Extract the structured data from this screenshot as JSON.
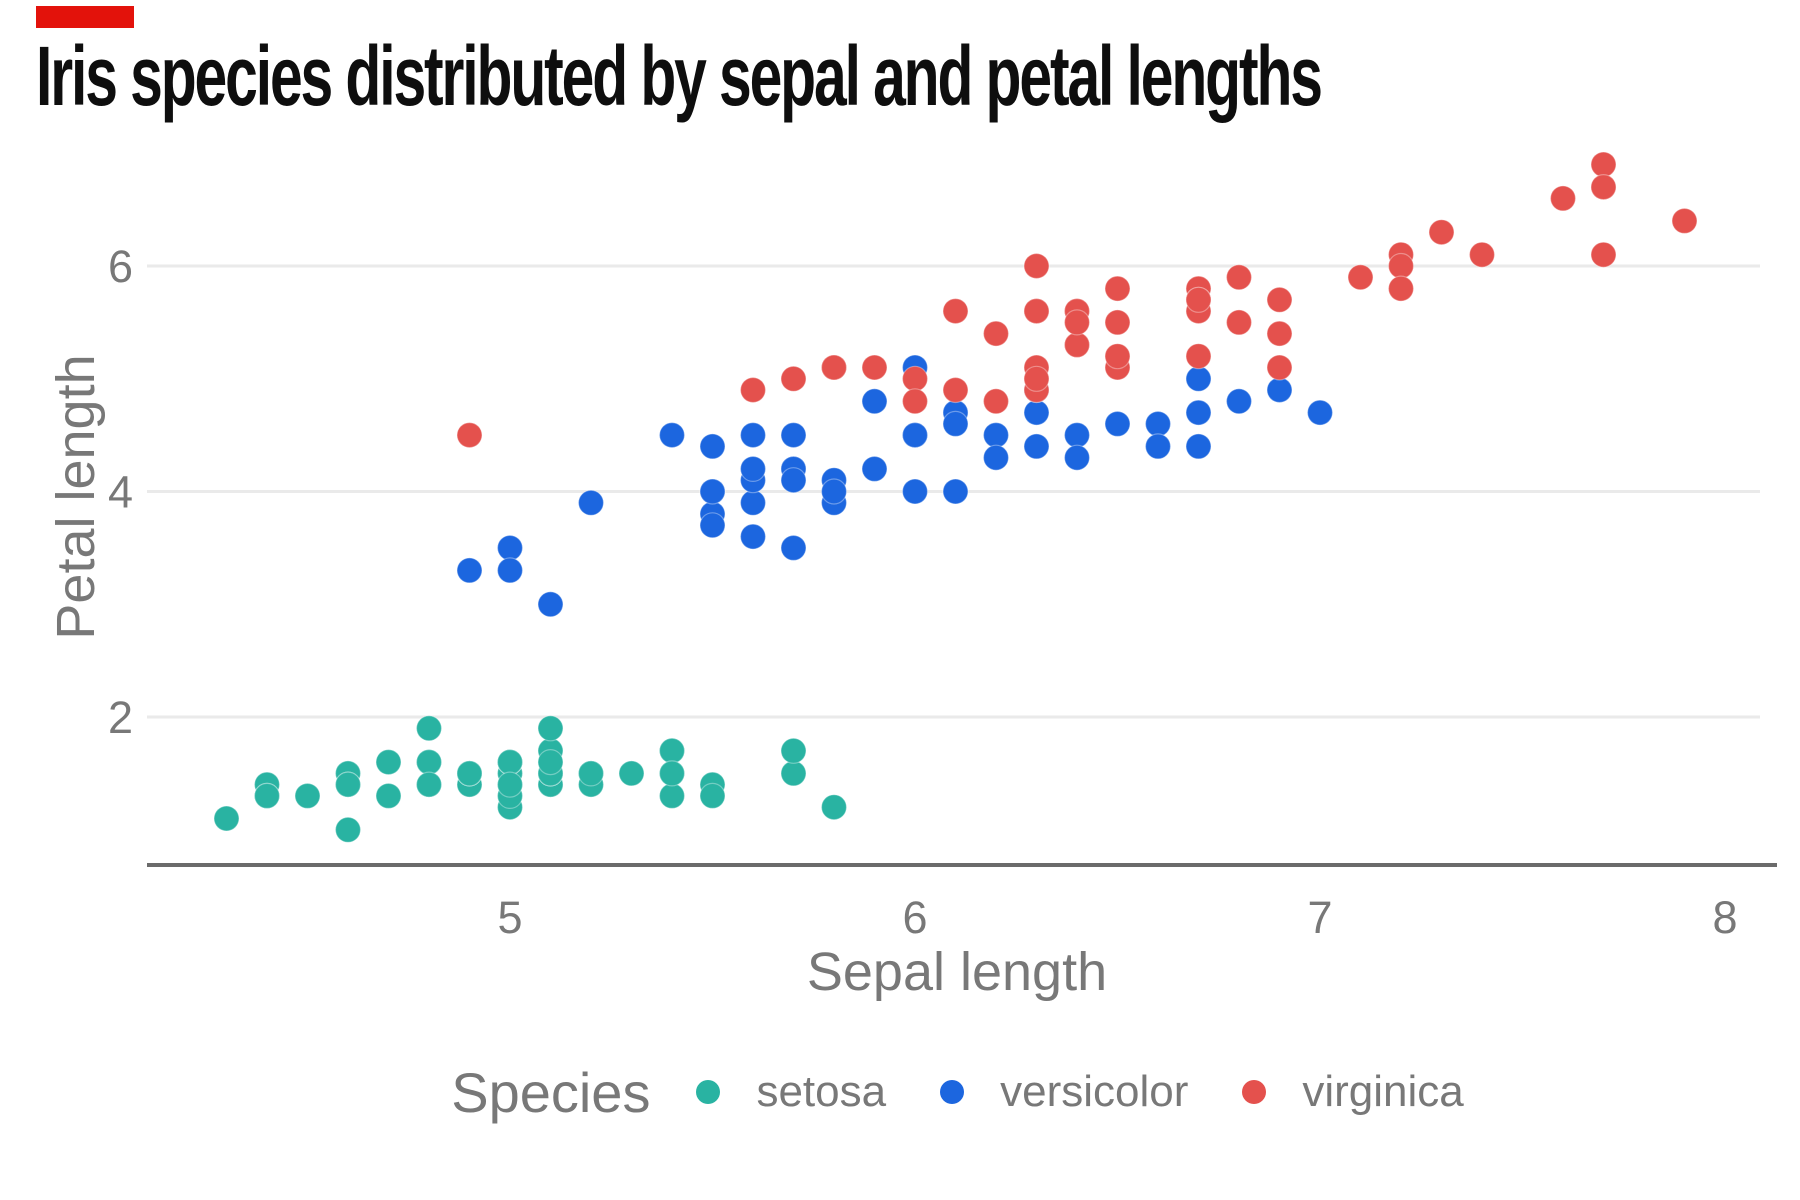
{
  "accent_bar": {
    "color": "#E3120B"
  },
  "legend": {
    "title": "Species",
    "items": [
      {
        "label": "setosa",
        "color": "#29B3A2"
      },
      {
        "label": "versicolor",
        "color": "#1C66DF"
      },
      {
        "label": "virginica",
        "color": "#E4514D"
      }
    ]
  },
  "style": {
    "grid_color": "#EAEAEA",
    "axis_line_color": "#6B6B6B",
    "tick_label_color": "#787878",
    "axis_title_color": "#787878"
  },
  "chart_data": {
    "type": "scatter",
    "title": "Iris species distributed by sepal and petal lengths",
    "xlabel": "Sepal length",
    "ylabel": "Petal length",
    "x_ticks": [
      5,
      6,
      7,
      8
    ],
    "y_ticks": [
      2,
      4,
      6
    ],
    "xlim": [
      4.1,
      8.1
    ],
    "ylim": [
      0.7,
      7.1
    ],
    "grid": "horizontal-only",
    "legend_position": "bottom",
    "series": [
      {
        "name": "setosa",
        "color": "#29B3A2",
        "points": [
          [
            5.1,
            1.4
          ],
          [
            4.9,
            1.4
          ],
          [
            4.7,
            1.3
          ],
          [
            4.6,
            1.5
          ],
          [
            5.0,
            1.4
          ],
          [
            5.4,
            1.7
          ],
          [
            4.6,
            1.4
          ],
          [
            5.0,
            1.5
          ],
          [
            4.4,
            1.4
          ],
          [
            4.9,
            1.5
          ],
          [
            5.4,
            1.5
          ],
          [
            4.8,
            1.6
          ],
          [
            4.8,
            1.4
          ],
          [
            4.3,
            1.1
          ],
          [
            5.8,
            1.2
          ],
          [
            5.7,
            1.5
          ],
          [
            5.4,
            1.3
          ],
          [
            5.1,
            1.4
          ],
          [
            5.7,
            1.7
          ],
          [
            5.1,
            1.5
          ],
          [
            5.4,
            1.7
          ],
          [
            5.1,
            1.5
          ],
          [
            4.6,
            1.0
          ],
          [
            5.1,
            1.7
          ],
          [
            4.8,
            1.9
          ],
          [
            5.0,
            1.6
          ],
          [
            5.0,
            1.6
          ],
          [
            5.2,
            1.5
          ],
          [
            5.2,
            1.4
          ],
          [
            4.7,
            1.6
          ],
          [
            4.8,
            1.6
          ],
          [
            5.4,
            1.5
          ],
          [
            5.2,
            1.5
          ],
          [
            5.5,
            1.4
          ],
          [
            4.9,
            1.5
          ],
          [
            5.0,
            1.2
          ],
          [
            5.5,
            1.3
          ],
          [
            4.9,
            1.5
          ],
          [
            4.4,
            1.3
          ],
          [
            5.1,
            1.5
          ],
          [
            5.0,
            1.3
          ],
          [
            4.5,
            1.3
          ],
          [
            4.4,
            1.3
          ],
          [
            5.0,
            1.6
          ],
          [
            5.1,
            1.9
          ],
          [
            4.8,
            1.4
          ],
          [
            5.1,
            1.6
          ],
          [
            4.6,
            1.4
          ],
          [
            5.3,
            1.5
          ],
          [
            5.0,
            1.4
          ]
        ]
      },
      {
        "name": "versicolor",
        "color": "#1C66DF",
        "points": [
          [
            7.0,
            4.7
          ],
          [
            6.4,
            4.5
          ],
          [
            6.9,
            4.9
          ],
          [
            5.5,
            4.0
          ],
          [
            6.5,
            4.6
          ],
          [
            5.7,
            4.5
          ],
          [
            6.3,
            4.7
          ],
          [
            4.9,
            3.3
          ],
          [
            6.6,
            4.6
          ],
          [
            5.2,
            3.9
          ],
          [
            5.0,
            3.5
          ],
          [
            5.9,
            4.2
          ],
          [
            6.0,
            4.0
          ],
          [
            6.1,
            4.7
          ],
          [
            5.6,
            3.6
          ],
          [
            6.7,
            4.4
          ],
          [
            5.6,
            4.5
          ],
          [
            5.8,
            4.1
          ],
          [
            6.2,
            4.5
          ],
          [
            5.6,
            3.9
          ],
          [
            5.9,
            4.8
          ],
          [
            6.1,
            4.0
          ],
          [
            6.3,
            4.9
          ],
          [
            6.1,
            4.7
          ],
          [
            6.4,
            4.3
          ],
          [
            6.6,
            4.4
          ],
          [
            6.8,
            4.8
          ],
          [
            6.7,
            5.0
          ],
          [
            6.0,
            4.5
          ],
          [
            5.7,
            3.5
          ],
          [
            5.5,
            3.8
          ],
          [
            5.5,
            3.7
          ],
          [
            5.8,
            3.9
          ],
          [
            6.0,
            5.1
          ],
          [
            5.4,
            4.5
          ],
          [
            6.0,
            4.5
          ],
          [
            6.7,
            4.7
          ],
          [
            6.3,
            4.4
          ],
          [
            5.6,
            4.1
          ],
          [
            5.5,
            4.0
          ],
          [
            5.5,
            4.4
          ],
          [
            6.1,
            4.6
          ],
          [
            5.8,
            4.0
          ],
          [
            5.0,
            3.3
          ],
          [
            5.6,
            4.2
          ],
          [
            5.7,
            4.2
          ],
          [
            5.7,
            4.2
          ],
          [
            6.2,
            4.3
          ],
          [
            5.1,
            3.0
          ],
          [
            5.7,
            4.1
          ]
        ]
      },
      {
        "name": "virginica",
        "color": "#E4514D",
        "points": [
          [
            6.3,
            6.0
          ],
          [
            5.8,
            5.1
          ],
          [
            7.1,
            5.9
          ],
          [
            6.3,
            5.6
          ],
          [
            6.5,
            5.8
          ],
          [
            7.6,
            6.6
          ],
          [
            4.9,
            4.5
          ],
          [
            7.3,
            6.3
          ],
          [
            6.7,
            5.8
          ],
          [
            7.2,
            6.1
          ],
          [
            6.5,
            5.1
          ],
          [
            6.4,
            5.3
          ],
          [
            6.8,
            5.5
          ],
          [
            5.7,
            5.0
          ],
          [
            5.8,
            5.1
          ],
          [
            6.4,
            5.3
          ],
          [
            6.5,
            5.5
          ],
          [
            7.7,
            6.7
          ],
          [
            7.7,
            6.9
          ],
          [
            6.0,
            5.0
          ],
          [
            6.9,
            5.7
          ],
          [
            5.6,
            4.9
          ],
          [
            7.7,
            6.7
          ],
          [
            6.3,
            4.9
          ],
          [
            6.7,
            5.7
          ],
          [
            7.2,
            6.0
          ],
          [
            6.2,
            4.8
          ],
          [
            6.1,
            4.9
          ],
          [
            6.4,
            5.6
          ],
          [
            7.2,
            5.8
          ],
          [
            7.4,
            6.1
          ],
          [
            7.9,
            6.4
          ],
          [
            6.4,
            5.6
          ],
          [
            6.3,
            5.1
          ],
          [
            6.1,
            5.6
          ],
          [
            7.7,
            6.1
          ],
          [
            6.3,
            5.6
          ],
          [
            6.4,
            5.5
          ],
          [
            6.0,
            4.8
          ],
          [
            6.9,
            5.4
          ],
          [
            6.7,
            5.6
          ],
          [
            6.9,
            5.1
          ],
          [
            5.8,
            5.1
          ],
          [
            6.8,
            5.9
          ],
          [
            6.7,
            5.7
          ],
          [
            6.7,
            5.2
          ],
          [
            6.3,
            5.0
          ],
          [
            6.5,
            5.2
          ],
          [
            6.2,
            5.4
          ],
          [
            5.9,
            5.1
          ]
        ]
      }
    ]
  }
}
